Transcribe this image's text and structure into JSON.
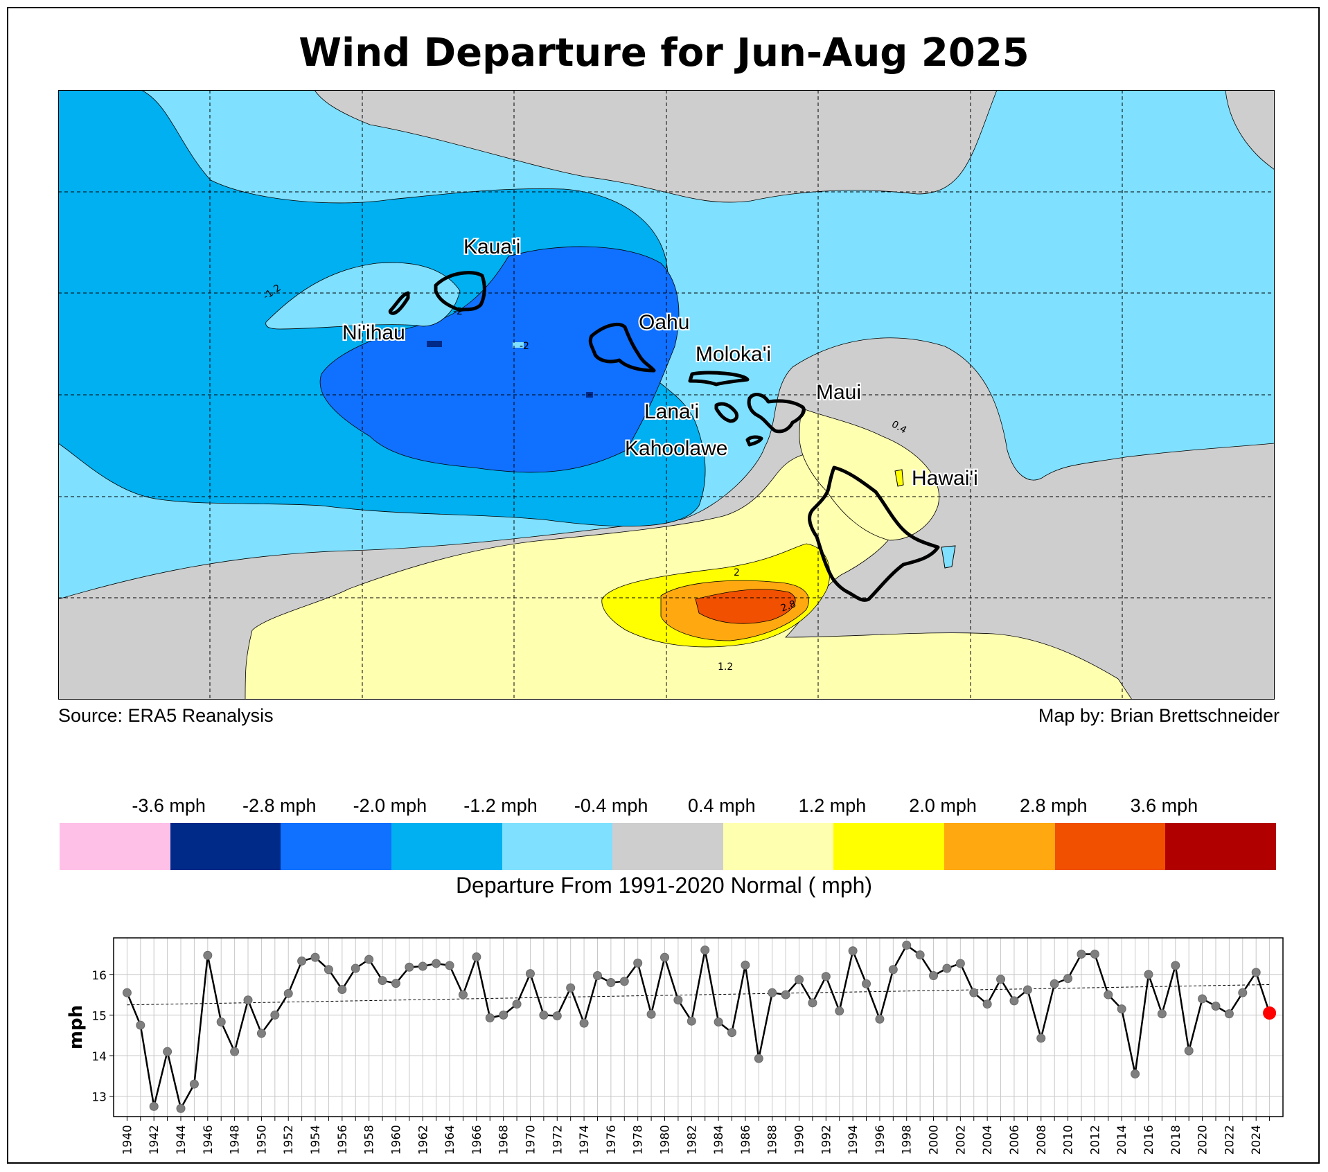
{
  "title": "Wind Departure for Jun-Aug 2025",
  "source": "Source: ERA5 Reanalysis",
  "credit": "Map by: Brian Brettschneider",
  "islands": [
    "Kaua'i",
    "Ni'ihau",
    "Oahu",
    "Moloka'i",
    "Maui",
    "Lana'i",
    "Kahoolawe",
    "Hawai'i"
  ],
  "contour_labels": [
    "-1.2",
    "-2",
    "-2",
    "0.4",
    "2",
    "2.8",
    "1.2"
  ],
  "colorbar": {
    "title": "Departure From 1991-2020 Normal ( mph)",
    "tick_labels": [
      "-3.6 mph",
      "-2.8 mph",
      "-2.0 mph",
      "-1.2 mph",
      "-0.4 mph",
      "0.4 mph",
      "1.2 mph",
      "2.0 mph",
      "2.8 mph",
      "3.6 mph"
    ],
    "colors": [
      "#ffc0e8",
      "#002a88",
      "#1070ff",
      "#00b0f0",
      "#7fe0ff",
      "#cecece",
      "#ffffb0",
      "#ffff00",
      "#ffa810",
      "#f05000",
      "#b00000"
    ]
  },
  "chart_data": {
    "type": "line",
    "ylabel": "mph",
    "ylim": [
      12.5,
      16.9
    ],
    "yticks": [
      13,
      14,
      15,
      16
    ],
    "x": [
      1940,
      1941,
      1942,
      1943,
      1944,
      1945,
      1946,
      1947,
      1948,
      1949,
      1950,
      1951,
      1952,
      1953,
      1954,
      1955,
      1956,
      1957,
      1958,
      1959,
      1960,
      1961,
      1962,
      1963,
      1964,
      1965,
      1966,
      1967,
      1968,
      1969,
      1970,
      1971,
      1972,
      1973,
      1974,
      1975,
      1976,
      1977,
      1978,
      1979,
      1980,
      1981,
      1982,
      1983,
      1984,
      1985,
      1986,
      1987,
      1988,
      1989,
      1990,
      1991,
      1992,
      1993,
      1994,
      1995,
      1996,
      1997,
      1998,
      1999,
      2000,
      2001,
      2002,
      2003,
      2004,
      2005,
      2006,
      2007,
      2008,
      2009,
      2010,
      2011,
      2012,
      2013,
      2014,
      2015,
      2016,
      2017,
      2018,
      2019,
      2020,
      2021,
      2022,
      2023,
      2024,
      2025
    ],
    "xticks": [
      1940,
      1942,
      1944,
      1946,
      1948,
      1950,
      1952,
      1954,
      1956,
      1958,
      1960,
      1962,
      1964,
      1966,
      1968,
      1970,
      1972,
      1974,
      1976,
      1978,
      1980,
      1982,
      1984,
      1986,
      1988,
      1990,
      1992,
      1994,
      1996,
      1998,
      2000,
      2002,
      2004,
      2006,
      2008,
      2010,
      2012,
      2014,
      2016,
      2018,
      2020,
      2022,
      2024
    ],
    "values": [
      15.55,
      14.75,
      12.75,
      14.1,
      12.7,
      13.3,
      16.47,
      14.83,
      14.1,
      15.37,
      14.55,
      15.0,
      15.53,
      16.33,
      16.42,
      16.12,
      15.63,
      16.15,
      16.37,
      15.85,
      15.78,
      16.18,
      16.2,
      16.27,
      16.22,
      15.5,
      16.43,
      14.93,
      15.0,
      15.27,
      16.02,
      15.0,
      14.98,
      15.67,
      14.8,
      15.97,
      15.8,
      15.83,
      16.28,
      15.02,
      16.42,
      15.37,
      14.85,
      16.6,
      14.83,
      14.57,
      16.23,
      13.93,
      15.55,
      15.5,
      15.87,
      15.3,
      15.95,
      15.1,
      16.58,
      15.77,
      14.9,
      16.12,
      16.72,
      16.48,
      15.97,
      16.15,
      16.27,
      15.55,
      15.27,
      15.88,
      15.35,
      15.62,
      14.43,
      15.77,
      15.9,
      16.5,
      16.5,
      15.5,
      15.15,
      13.55,
      16.0,
      15.03,
      16.22,
      14.12,
      15.4,
      15.22,
      15.03,
      15.55,
      16.05,
      15.05
    ],
    "trend": {
      "start": 15.25,
      "end": 15.75
    },
    "highlight_year": 2025,
    "highlight_color": "#ff0000"
  }
}
